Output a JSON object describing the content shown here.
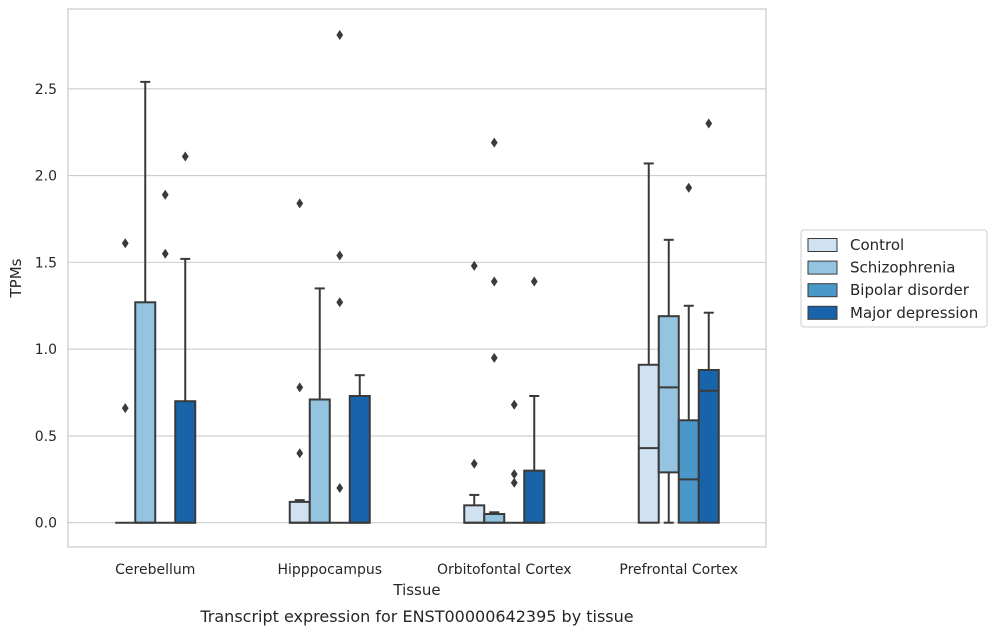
{
  "caption": "Transcript expression for ENST00000642395 by tissue",
  "chart_data": {
    "type": "boxplot",
    "xlabel": "Tissue",
    "ylabel": "TPMs",
    "ylim": [
      -0.14,
      2.96
    ],
    "yticks": [
      0.0,
      0.5,
      1.0,
      1.5,
      2.0,
      2.5
    ],
    "ytick_labels": [
      "0.0",
      "0.5",
      "1.0",
      "1.5",
      "2.0",
      "2.5"
    ],
    "grid": "horizontal",
    "legend_position": "right",
    "categories": [
      "Cerebellum",
      "Hipppocampus",
      "Orbitofontal Cortex",
      "Prefrontal Cortex"
    ],
    "series": [
      {
        "name": "Control",
        "color": "#d0e1f2",
        "boxes": [
          {
            "q1": 0.0,
            "median": 0.0,
            "q3": 0.0,
            "whisker_low": 0.0,
            "whisker_high": 0.0,
            "outliers": [
              0.66,
              1.61
            ]
          },
          {
            "q1": 0.0,
            "median": 0.0,
            "q3": 0.12,
            "whisker_low": 0.0,
            "whisker_high": 0.13,
            "outliers": [
              0.4,
              0.78,
              1.84
            ]
          },
          {
            "q1": 0.0,
            "median": 0.0,
            "q3": 0.1,
            "whisker_low": 0.0,
            "whisker_high": 0.16,
            "outliers": [
              0.34,
              1.48
            ]
          },
          {
            "q1": 0.0,
            "median": 0.43,
            "q3": 0.91,
            "whisker_low": 0.0,
            "whisker_high": 2.07,
            "outliers": []
          }
        ]
      },
      {
        "name": "Schizophrenia",
        "color": "#94c4df",
        "boxes": [
          {
            "q1": 0.0,
            "median": 0.0,
            "q3": 1.27,
            "whisker_low": 0.0,
            "whisker_high": 2.54,
            "outliers": []
          },
          {
            "q1": 0.0,
            "median": 0.0,
            "q3": 0.71,
            "whisker_low": 0.0,
            "whisker_high": 1.35,
            "outliers": []
          },
          {
            "q1": 0.0,
            "median": 0.0,
            "q3": 0.05,
            "whisker_low": 0.0,
            "whisker_high": 0.06,
            "outliers": [
              0.95,
              1.39,
              2.19
            ]
          },
          {
            "q1": 0.29,
            "median": 0.78,
            "q3": 1.19,
            "whisker_low": 0.0,
            "whisker_high": 1.63,
            "outliers": []
          }
        ]
      },
      {
        "name": "Bipolar disorder",
        "color": "#4a98c9",
        "boxes": [
          {
            "q1": 0.0,
            "median": 0.0,
            "q3": 0.0,
            "whisker_low": 0.0,
            "whisker_high": 0.0,
            "outliers": [
              1.55,
              1.89
            ]
          },
          {
            "q1": 0.0,
            "median": 0.0,
            "q3": 0.0,
            "whisker_low": 0.0,
            "whisker_high": 0.0,
            "outliers": [
              0.2,
              1.27,
              1.54,
              2.81
            ]
          },
          {
            "q1": 0.0,
            "median": 0.0,
            "q3": 0.0,
            "whisker_low": 0.0,
            "whisker_high": 0.0,
            "outliers": [
              0.23,
              0.28,
              0.68
            ]
          },
          {
            "q1": 0.0,
            "median": 0.25,
            "q3": 0.59,
            "whisker_low": 0.0,
            "whisker_high": 1.25,
            "outliers": [
              1.93
            ]
          }
        ]
      },
      {
        "name": "Major depression",
        "color": "#1764ab",
        "boxes": [
          {
            "q1": 0.0,
            "median": 0.0,
            "q3": 0.7,
            "whisker_low": 0.0,
            "whisker_high": 1.52,
            "outliers": [
              2.11
            ]
          },
          {
            "q1": 0.0,
            "median": 0.0,
            "q3": 0.73,
            "whisker_low": 0.0,
            "whisker_high": 0.85,
            "outliers": []
          },
          {
            "q1": 0.0,
            "median": 0.0,
            "q3": 0.3,
            "whisker_low": 0.0,
            "whisker_high": 0.73,
            "outliers": [
              1.39
            ]
          },
          {
            "q1": 0.0,
            "median": 0.76,
            "q3": 0.88,
            "whisker_low": 0.0,
            "whisker_high": 1.21,
            "outliers": [
              2.3
            ]
          }
        ]
      }
    ]
  }
}
